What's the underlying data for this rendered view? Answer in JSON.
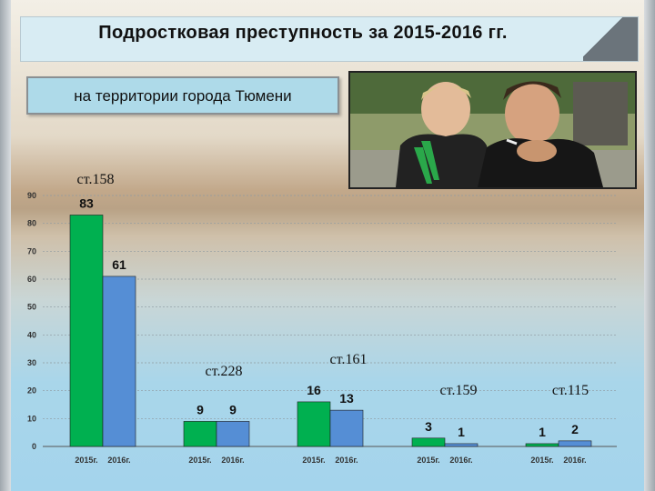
{
  "header": {
    "title": "Подростковая преступность за  2015-2016 гг.",
    "subtitle": "на территории  города Тюмени"
  },
  "photo": {
    "icon": "teenagers-photo"
  },
  "colors": {
    "series_2015": "#00b050",
    "series_2016": "#558ed5"
  },
  "chart_data": {
    "type": "bar",
    "categories": [
      "ст.158",
      "ст.228",
      "ст.161",
      "ст.159",
      "ст.115"
    ],
    "x_labels": [
      [
        "2015г.",
        "2016г."
      ],
      [
        "2015г.",
        "2016г."
      ],
      [
        "2015г.",
        "2016г."
      ],
      [
        "2015г.",
        "2016г."
      ],
      [
        "2015г.",
        "2016г."
      ]
    ],
    "series": [
      {
        "values": [
          83,
          9,
          16,
          3,
          1
        ]
      },
      {
        "values": [
          61,
          9,
          13,
          1,
          2
        ]
      }
    ],
    "ylim": [
      0,
      90
    ],
    "yticks": [
      0,
      10,
      20,
      30,
      40,
      50,
      60,
      70,
      80,
      90
    ],
    "grid": true,
    "data_labels": true
  }
}
